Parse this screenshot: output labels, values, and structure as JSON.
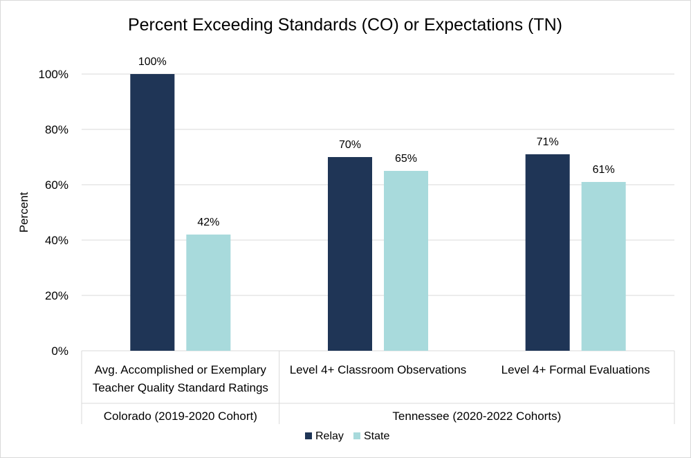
{
  "chart_data": {
    "type": "bar",
    "title": "Percent Exceeding Standards (CO) or Expectations (TN)",
    "ylabel": "Percent",
    "ylim": [
      0,
      100
    ],
    "yticks": [
      0,
      20,
      40,
      60,
      80,
      100
    ],
    "ytick_labels": [
      "0%",
      "20%",
      "40%",
      "60%",
      "80%",
      "100%"
    ],
    "categories": [
      "Avg. Accomplished or Exemplary Teacher Quality Standard Ratings",
      "Level 4+ Classroom Observations",
      "Level 4+ Formal Evaluations"
    ],
    "category_lines": [
      [
        "Avg. Accomplished or Exemplary",
        "Teacher Quality Standard Ratings"
      ],
      [
        "Level 4+ Classroom Observations"
      ],
      [
        "Level 4+ Formal Evaluations"
      ]
    ],
    "groups": [
      {
        "label": "Colorado (2019-2020 Cohort)",
        "categories": [
          0
        ]
      },
      {
        "label": "Tennessee (2020-2022 Cohorts)",
        "categories": [
          1,
          2
        ]
      }
    ],
    "series": [
      {
        "name": "Relay",
        "color": "#1f3556",
        "values": [
          100,
          70,
          71
        ],
        "labels": [
          "100%",
          "70%",
          "71%"
        ]
      },
      {
        "name": "State",
        "color": "#a8dadc",
        "values": [
          42,
          65,
          61
        ],
        "labels": [
          "42%",
          "65%",
          "61%"
        ]
      }
    ],
    "grid": true,
    "legend": "bottom"
  },
  "colors": {
    "gridline": "#d9d9d9",
    "text": "#000000"
  }
}
